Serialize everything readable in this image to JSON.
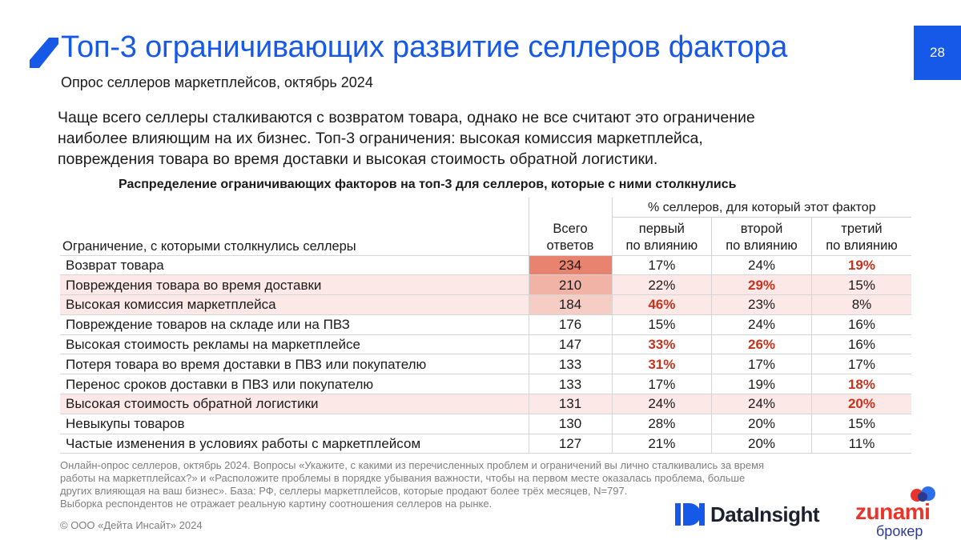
{
  "header": {
    "title": "Топ-3 ограничивающих развитие селлеров фактора",
    "subtitle": "Опрос селлеров маркетплейсов, октябрь 2024",
    "page_number": "28"
  },
  "lead": [
    "Чаще всего селлеры сталкиваются с возвратом товара, однако не все считают это ограничение",
    "наиболее влияющим на их бизнес. Топ-3 ограничения: высокая комиссия маркетплейса,",
    "повреждения товара во время доставки и высокая стоимость обратной логистики."
  ],
  "table": {
    "title": "Распределение ограничивающих факторов на топ-3 для селлеров, которые с ними столкнулись",
    "group_header": "% селлеров, для который этот фактор",
    "col_name_header": "Ограничение, с которыми столкнулись селлеры",
    "col_total_header": [
      "Всего",
      "ответов"
    ],
    "col_first_header": [
      "первый",
      "по влиянию"
    ],
    "col_second_header": [
      "второй",
      "по влиянию"
    ],
    "col_third_header": [
      "третий",
      "по влиянию"
    ],
    "rows": [
      {
        "name": "Возврат товара",
        "total": "234",
        "first": "17%",
        "second": "24%",
        "third": "19%"
      },
      {
        "name": "Повреждения товара во время доставки",
        "total": "210",
        "first": "22%",
        "second": "29%",
        "third": "15%"
      },
      {
        "name": "Высокая комиссия маркетплейса",
        "total": "184",
        "first": "46%",
        "second": "23%",
        "third": "8%"
      },
      {
        "name": "Повреждение товаров на складе или на ПВЗ",
        "total": "176",
        "first": "15%",
        "second": "24%",
        "third": "16%"
      },
      {
        "name": "Высокая стоимость рекламы на маркетплейсе",
        "total": "147",
        "first": "33%",
        "second": "26%",
        "third": "16%"
      },
      {
        "name": "Потеря товара во время доставки в ПВЗ или покупателю",
        "total": "133",
        "first": "31%",
        "second": "17%",
        "third": "17%"
      },
      {
        "name": "Перенос сроков доставки в ПВЗ или покупателю",
        "total": "133",
        "first": "17%",
        "second": "19%",
        "third": "18%"
      },
      {
        "name": "Высокая стоимость обратной логистики",
        "total": "131",
        "first": "24%",
        "second": "24%",
        "third": "20%"
      },
      {
        "name": "Невыкупы товаров",
        "total": "130",
        "first": "28%",
        "second": "20%",
        "third": "15%"
      },
      {
        "name": "Частые изменения в условиях работы с маркетплейсом",
        "total": "127",
        "first": "21%",
        "second": "20%",
        "third": "11%"
      }
    ]
  },
  "footnote": [
    "Онлайн-опрос селлеров, октябрь 2024. Вопросы «Укажите, с какими из перечисленных проблем и ограничений вы лично сталкивались за время",
    "работы на маркетплейсах?» и «Расположите проблемы в порядке убывания важности, чтобы на первом месте оказалась проблема, больше",
    "других влияющая на ваш бизнес». База: РФ, селлеры маркетплейсов, которые продают более трёх месяцев, N=797.",
    "Выборка респондентов не отражает реальную картину соотношения селлеров на рынке."
  ],
  "copyright": "© ООО «Дейта Инсайт» 2024",
  "logos": {
    "datainsight": "DataInsight",
    "zunami_word": "zunami",
    "zunami_sub": "брокер"
  },
  "colors": {
    "brand_blue": "#1658e8",
    "highlight_red": "#c6321c",
    "row_highlight": "#fce8e6",
    "zunami_red": "#e8352b",
    "zunami_blue": "#2d3b8f"
  }
}
